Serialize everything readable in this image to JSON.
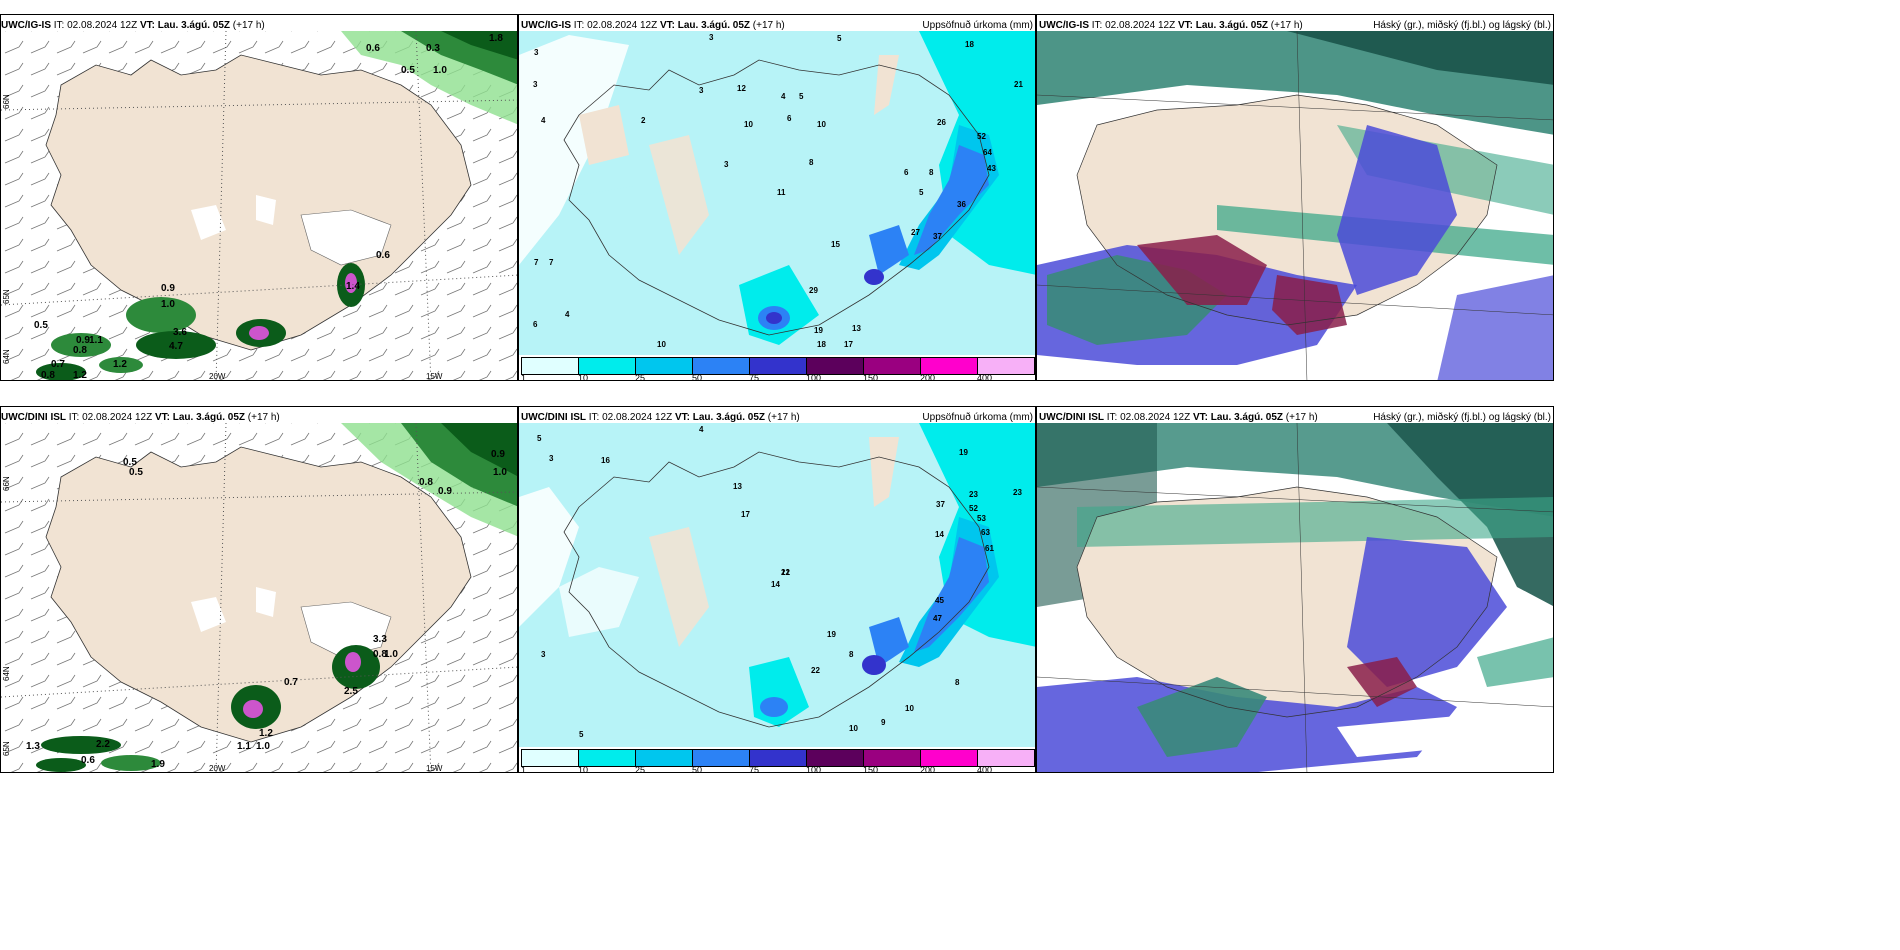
{
  "rows": [
    {
      "panels": [
        {
          "model": "UWC/IG-IS",
          "it_label": "IT:",
          "it": "02.08.2024 12Z",
          "vt_label": "VT:",
          "vt": "Lau. 3.ágú. 05Z",
          "lead": "(+17 h)",
          "right": ""
        },
        {
          "model": "UWC/IG-IS",
          "it_label": "IT:",
          "it": "02.08.2024 12Z",
          "vt_label": "VT:",
          "vt": "Lau. 3.ágú. 05Z",
          "lead": "(+17 h)",
          "right": "Uppsöfnuð úrkoma (mm)"
        },
        {
          "model": "UWC/IG-IS",
          "it_label": "IT:",
          "it": "02.08.2024 12Z",
          "vt_label": "VT:",
          "vt": "Lau. 3.ágú. 05Z",
          "lead": "(+17 h)",
          "right": "Háský (gr.), miðský (fj.bl.) og lágský (bl.)"
        }
      ],
      "wind_values": [
        "0.6",
        "0.3",
        "1.8",
        "0.5",
        "1.0",
        "0.6",
        "0.9",
        "1.0",
        "0.5",
        "0.9",
        "1.1",
        "0.8",
        "3.6",
        "4.7",
        "0.7",
        "1.2",
        "0.8",
        "1.2",
        "1.4"
      ],
      "precip_values": [
        "3",
        "5",
        "4",
        "18",
        "21",
        "3",
        "12",
        "4",
        "5",
        "10",
        "6",
        "10",
        "26",
        "2",
        "3",
        "7",
        "11",
        "8",
        "52",
        "64",
        "43",
        "6",
        "8",
        "5",
        "36",
        "27",
        "37",
        "15",
        "29",
        "19",
        "13",
        "18",
        "17",
        "10",
        "7",
        "6",
        "4"
      ]
    },
    {
      "panels": [
        {
          "model": "UWC/DINI ISL",
          "it_label": "IT:",
          "it": "02.08.2024 12Z",
          "vt_label": "VT:",
          "vt": "Lau. 3.ágú. 05Z",
          "lead": "(+17 h)",
          "right": ""
        },
        {
          "model": "UWC/DINI ISL",
          "it_label": "IT:",
          "it": "02.08.2024 12Z",
          "vt_label": "VT:",
          "vt": "Lau. 3.ágú. 05Z",
          "lead": "(+17 h)",
          "right": "Uppsöfnuð úrkoma (mm)"
        },
        {
          "model": "UWC/DINI ISL",
          "it_label": "IT:",
          "it": "02.08.2024 12Z",
          "vt_label": "VT:",
          "vt": "Lau. 3.ágú. 05Z",
          "lead": "(+17 h)",
          "right": "Háský (gr.), miðský (fj.bl.) og lágský (bl.)"
        }
      ],
      "wind_values": [
        "0.5",
        "0.5",
        "0.9",
        "1.0",
        "0.8",
        "0.9",
        "3.3",
        "1.0",
        "0.8",
        "0.7",
        "1.2",
        "2.5",
        "1.3",
        "2.2",
        "0.6",
        "1.9",
        "1.1",
        "1.0"
      ],
      "precip_values": [
        "5",
        "3",
        "4",
        "19",
        "23",
        "23",
        "16",
        "13",
        "17",
        "37",
        "52",
        "53",
        "14",
        "63",
        "61",
        "21",
        "12",
        "14",
        "45",
        "47",
        "19",
        "8",
        "22",
        "10",
        "10",
        "9",
        "8",
        "3",
        "5"
      ]
    }
  ],
  "axis_labels": {
    "lat66": "66N",
    "lat64": "64N",
    "lat65": "65N",
    "lon20": "20W",
    "lon15": "15W"
  },
  "colorbar": {
    "labels": [
      "1",
      "10",
      "25",
      "50",
      "75",
      "100",
      "150",
      "200",
      "400"
    ],
    "colors": [
      "#e0ffff",
      "#00ecec",
      "#00c6ee",
      "#2c82f5",
      "#3333cc",
      "#5c005c",
      "#9a0080",
      "#ff00cc",
      "#f7b0f7"
    ]
  },
  "colors": {
    "land": "#f1e3d3",
    "wind_green": "#2d8a3b",
    "dark_green": "#0b5c1a",
    "light_green": "#8fe08f",
    "precip_base": "#b7f3f7",
    "cloud_high": "#3a8a7a",
    "cloud_mid": "#4b4bd8",
    "cloud_low": "#8a1f4a"
  }
}
